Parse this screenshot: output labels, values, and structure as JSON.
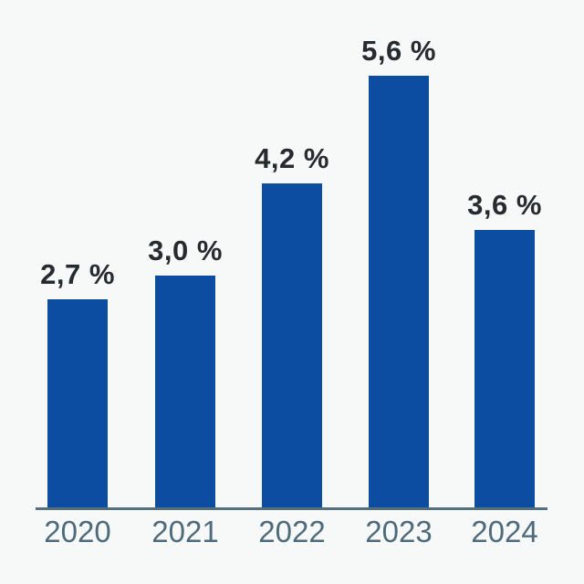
{
  "chart_data": {
    "type": "bar",
    "categories": [
      "2020",
      "2021",
      "2022",
      "2023",
      "2024"
    ],
    "values": [
      2.7,
      3.0,
      4.2,
      5.6,
      3.6
    ],
    "value_labels": [
      "2,7 %",
      "3,0 %",
      "4,2 %",
      "5,6 %",
      "3,6 %"
    ],
    "title": "",
    "xlabel": "",
    "ylabel": "",
    "ylim": [
      0,
      6.6
    ],
    "grid": false,
    "legend": false,
    "decimal_separator": ",",
    "unit": "%",
    "colors": {
      "bar": "#0c4da2",
      "value_label": "#262b2f",
      "year_label": "#4e6b7c",
      "axis_line": "#54707e",
      "background": "#f7f8f8"
    }
  }
}
